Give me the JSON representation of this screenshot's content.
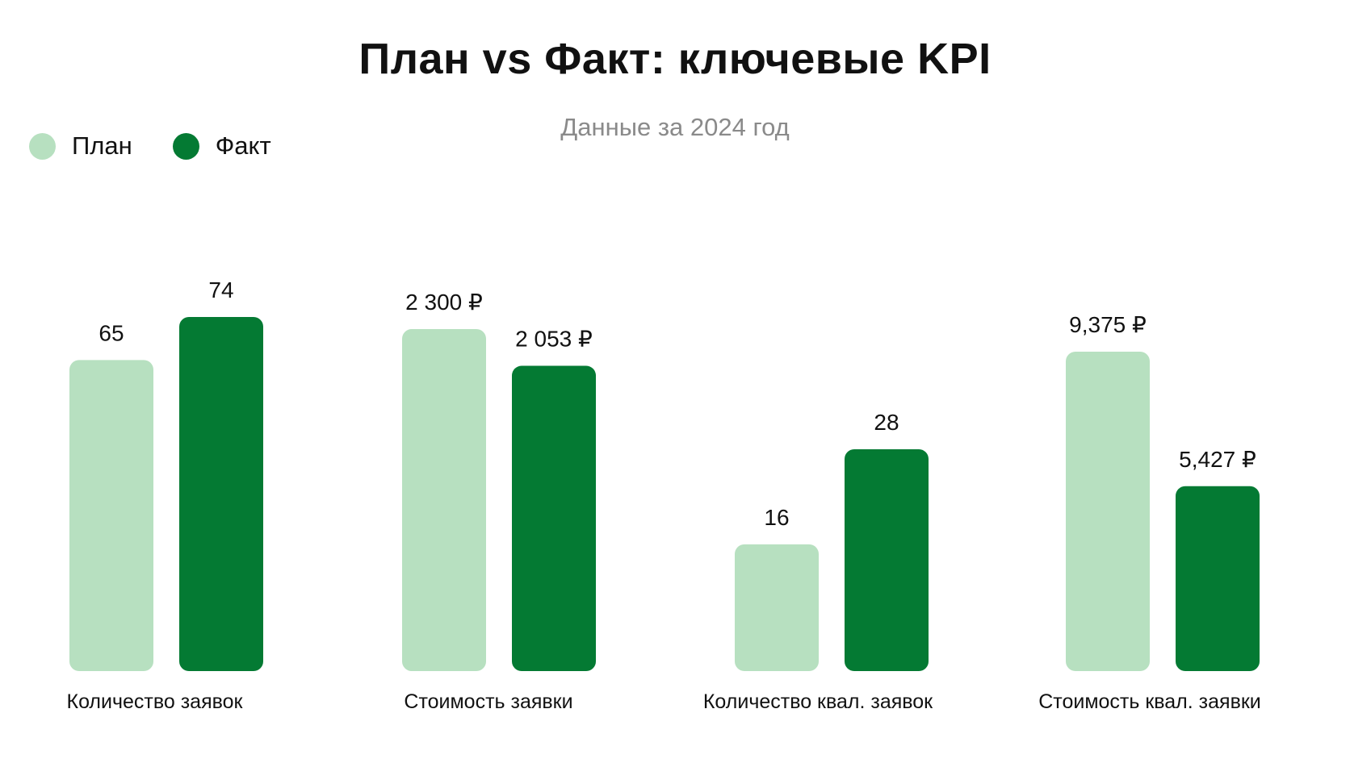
{
  "chart_data": {
    "type": "bar",
    "title": "План vs Факт: ключевые KPI",
    "subtitle": "Данные за 2024 год",
    "legend_position": "top-left",
    "grid": false,
    "categories": [
      "Количество заявок",
      "Стоимость заявки",
      "Количество квал. заявок",
      "Стоимость квал. заявки"
    ],
    "series": [
      {
        "name": "План",
        "color": "#b7e0c0",
        "values": [
          65,
          2300,
          16,
          9375
        ],
        "labels": [
          "65",
          "2 300 ₽",
          "16",
          "9,375 ₽"
        ]
      },
      {
        "name": "Факт",
        "color": "#047a33",
        "values": [
          74,
          2053,
          28,
          5427
        ],
        "labels": [
          "74",
          "2 053 ₽",
          "28",
          "5,427 ₽"
        ]
      }
    ]
  }
}
